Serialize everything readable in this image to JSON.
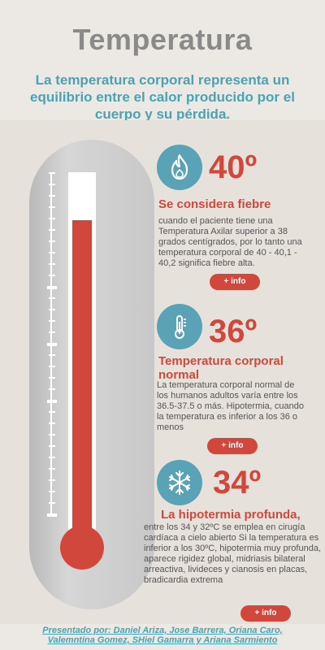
{
  "page": {
    "title": "Temperatura",
    "subtitle": "La temperatura corporal representa un equilibrio entre el calor producido por el cuerpo y su pérdida."
  },
  "sections": [
    {
      "icon": "fire-icon",
      "temp": "40º",
      "heading": "Se considera fiebre",
      "body": "cuando el paciente tiene una Temperatura Axilar superior a 38 grados centígrados, por lo tanto una temperatura corporal de 40 - 40,1 - 40,2 significa fiebre alta.",
      "button": "+ info"
    },
    {
      "icon": "thermometer-icon",
      "temp": "36º",
      "heading": "Temperatura corporal normal",
      "body": "La temperatura corporal normal de los humanos adultos varía entre los 36.5-37.5 o más. Hipotermia, cuando la temperatura es inferior a los 36 o menos",
      "button": "+ info"
    },
    {
      "icon": "snowflake-icon",
      "temp": "34º",
      "heading": "La hipotermia profunda,",
      "body": "entre los 34 y 32ºC se emplea en cirugía cardíaca a cielo abierto Si la temperatura es inferior a los 30ºC, hipotermia muy profunda, aparece rigidez global, midriasis bilateral arreactiva, livideces y cianosis en placas, bradicardia extrema",
      "button": "+ info"
    }
  ],
  "footer": {
    "line1": "Presentado por: Daniel Ariza, Jose Barrera, Oriana Caro,",
    "line2": "Valemntina Gomez, SHiel Gamarra y Ariana Sarmiento"
  },
  "colors": {
    "accent_red": "#d1473b",
    "accent_teal": "#5aa2b5",
    "title_gray": "#8a8a8a"
  }
}
